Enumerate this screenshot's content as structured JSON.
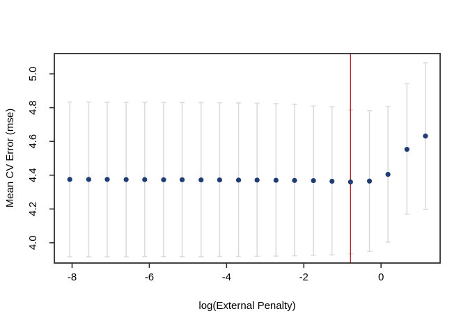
{
  "figure": {
    "background": "#ffffff"
  },
  "chart_data": {
    "type": "scatter",
    "title": "",
    "xlabel": "log(External Penalty)",
    "ylabel": "Mean CV Error (mse)",
    "xlim": [
      -8.46,
      1.53
    ],
    "ylim": [
      3.88,
      5.12
    ],
    "grid": false,
    "legend": "none",
    "x_ticks": [
      -8,
      -6,
      -4,
      -2,
      0
    ],
    "x_tick_labels": [
      "-8",
      "-6",
      "-4",
      "-2",
      "0"
    ],
    "y_ticks": [
      4.0,
      4.2,
      4.4,
      4.6,
      4.8,
      5.0
    ],
    "y_tick_labels": [
      "4.0",
      "4.2",
      "4.4",
      "4.6",
      "4.8",
      "5.0"
    ],
    "vline": {
      "x": -0.79,
      "color": "#b22222"
    },
    "colors": {
      "point": "#1f3d72",
      "error_bar": "#dcdcdc",
      "axis": "#2e2e2e",
      "text": "#000000"
    },
    "series": [
      {
        "name": "mean CV error",
        "marker": "circle",
        "x": [
          -8.06,
          -7.57,
          -7.09,
          -6.6,
          -6.12,
          -5.63,
          -5.15,
          -4.66,
          -4.18,
          -3.69,
          -3.21,
          -2.72,
          -2.24,
          -1.75,
          -1.27,
          -0.79,
          -0.3,
          0.18,
          0.67,
          1.15
        ],
        "y": [
          4.375,
          4.375,
          4.375,
          4.374,
          4.374,
          4.373,
          4.373,
          4.372,
          4.372,
          4.371,
          4.371,
          4.37,
          4.369,
          4.368,
          4.364,
          4.36,
          4.365,
          4.405,
          4.553,
          4.632
        ],
        "y_upper": [
          4.833,
          4.833,
          4.832,
          4.832,
          4.831,
          4.831,
          4.83,
          4.83,
          4.829,
          4.828,
          4.826,
          4.824,
          4.82,
          4.81,
          4.805,
          4.787,
          4.783,
          4.808,
          4.942,
          5.066
        ],
        "y_lower": [
          3.917,
          3.917,
          3.917,
          3.917,
          3.918,
          3.918,
          3.918,
          3.918,
          3.919,
          3.919,
          3.92,
          3.921,
          3.923,
          3.926,
          3.928,
          3.935,
          3.949,
          4.004,
          4.169,
          4.196
        ]
      }
    ]
  }
}
